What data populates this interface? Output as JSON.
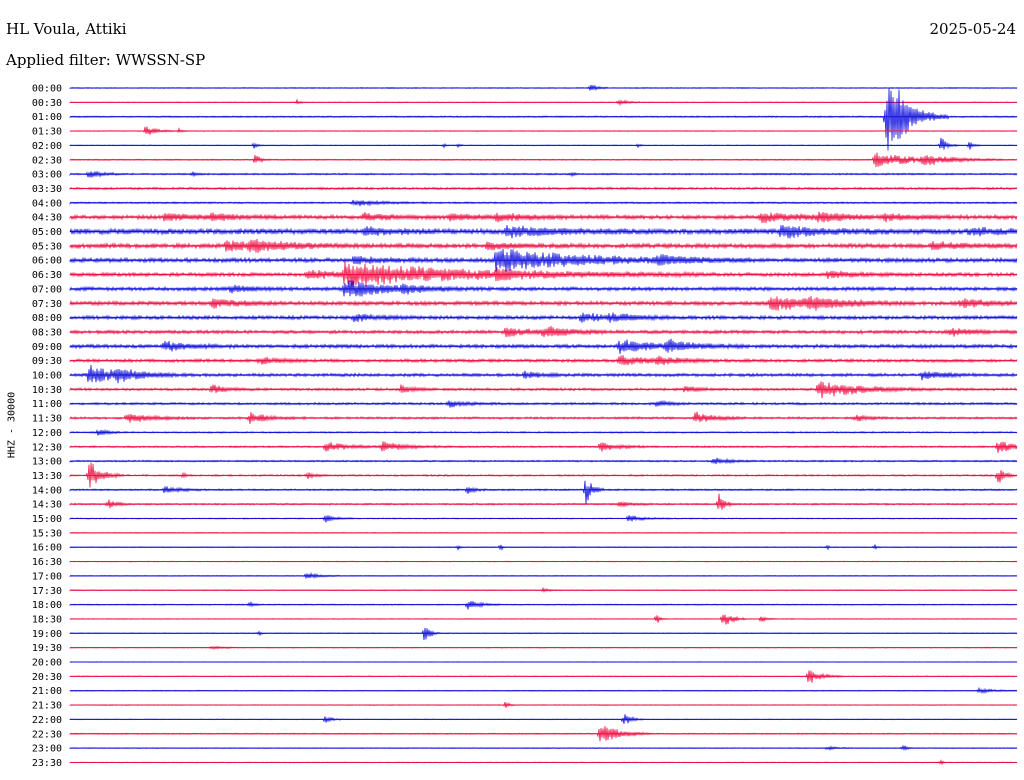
{
  "header": {
    "station": "HL Voula, Attiki",
    "date": "2025-05-24",
    "filter": "Applied filter: WWSSN-SP"
  },
  "chart_data": {
    "type": "line",
    "ylabel": "HHZ - 30000",
    "colors": {
      "even": "#1111dd",
      "odd": "#ee1144"
    },
    "row_labels": [
      "00:00",
      "00:30",
      "01:00",
      "01:30",
      "02:00",
      "02:30",
      "03:00",
      "03:30",
      "04:00",
      "04:30",
      "05:00",
      "05:30",
      "06:00",
      "06:30",
      "07:00",
      "07:30",
      "08:00",
      "08:30",
      "09:00",
      "09:30",
      "10:00",
      "10:30",
      "11:00",
      "11:30",
      "12:00",
      "12:30",
      "13:00",
      "13:30",
      "14:00",
      "14:30",
      "15:00",
      "15:30",
      "16:00",
      "16:30",
      "17:00",
      "17:30",
      "18:00",
      "18:30",
      "19:00",
      "19:30",
      "20:00",
      "20:30",
      "21:00",
      "21:30",
      "22:00",
      "22:30",
      "23:00",
      "23:30"
    ],
    "series": [
      {
        "row": 0,
        "noise": 0.4,
        "events": [
          [
            0.55,
            0.6,
            3.5
          ]
        ]
      },
      {
        "row": 1,
        "noise": 0.3,
        "events": [
          [
            0.24,
            0.3,
            2
          ],
          [
            0.58,
            0.8,
            3
          ]
        ]
      },
      {
        "row": 2,
        "noise": 0.5,
        "events": [
          [
            0.862,
            2.2,
            30
          ],
          [
            0.875,
            1.0,
            10
          ]
        ]
      },
      {
        "row": 3,
        "noise": 0.3,
        "events": [
          [
            0.08,
            1.0,
            5
          ],
          [
            0.115,
            0.4,
            2
          ]
        ]
      },
      {
        "row": 4,
        "noise": 0.3,
        "events": [
          [
            0.195,
            0.3,
            3
          ],
          [
            0.395,
            0.2,
            2
          ],
          [
            0.41,
            0.2,
            2
          ],
          [
            0.6,
            0.2,
            2
          ],
          [
            0.92,
            0.6,
            7
          ],
          [
            0.95,
            0.4,
            4
          ]
        ]
      },
      {
        "row": 5,
        "noise": 0.4,
        "events": [
          [
            0.196,
            0.5,
            5
          ],
          [
            0.85,
            4.5,
            6
          ],
          [
            0.9,
            2.5,
            4
          ]
        ]
      },
      {
        "row": 6,
        "noise": 0.6,
        "events": [
          [
            0.02,
            1.2,
            4
          ],
          [
            0.13,
            0.4,
            2
          ],
          [
            0.53,
            0.2,
            2
          ]
        ]
      },
      {
        "row": 7,
        "noise": 0.8,
        "events": []
      },
      {
        "row": 8,
        "noise": 0.6,
        "events": [
          [
            0.3,
            2.5,
            3
          ]
        ]
      },
      {
        "row": 9,
        "noise": 1.4,
        "events": [
          [
            0.1,
            3,
            3
          ],
          [
            0.15,
            2.5,
            3
          ],
          [
            0.31,
            3,
            3
          ],
          [
            0.4,
            2.5,
            3
          ],
          [
            0.45,
            4,
            3
          ],
          [
            0.73,
            4,
            4
          ],
          [
            0.79,
            2.8,
            4
          ],
          [
            0.86,
            3,
            3
          ]
        ]
      },
      {
        "row": 10,
        "noise": 2.0,
        "events": [
          [
            0.31,
            3,
            3
          ],
          [
            0.46,
            5.5,
            4
          ],
          [
            0.75,
            4,
            5
          ],
          [
            0.95,
            3,
            3
          ]
        ]
      },
      {
        "row": 11,
        "noise": 1.6,
        "events": [
          [
            0.165,
            5,
            4
          ],
          [
            0.19,
            3,
            4
          ],
          [
            0.44,
            2.5,
            3
          ],
          [
            0.91,
            3,
            3
          ]
        ]
      },
      {
        "row": 12,
        "noise": 1.5,
        "events": [
          [
            0.45,
            9,
            10
          ],
          [
            0.3,
            2.5,
            3
          ],
          [
            0.62,
            3,
            3
          ]
        ]
      },
      {
        "row": 13,
        "noise": 1.3,
        "events": [
          [
            0.29,
            13,
            10
          ],
          [
            0.25,
            3,
            4
          ],
          [
            0.45,
            2.5,
            3
          ],
          [
            0.8,
            3,
            3
          ]
        ]
      },
      {
        "row": 14,
        "noise": 1.3,
        "events": [
          [
            0.29,
            4,
            8
          ],
          [
            0.35,
            3,
            3
          ],
          [
            0.17,
            2.2,
            3
          ]
        ]
      },
      {
        "row": 15,
        "noise": 1.4,
        "events": [
          [
            0.15,
            2.5,
            4
          ],
          [
            0.74,
            5,
            6
          ],
          [
            0.78,
            3,
            4
          ],
          [
            0.94,
            3,
            4
          ]
        ]
      },
      {
        "row": 16,
        "noise": 1.3,
        "events": [
          [
            0.3,
            2.5,
            3
          ],
          [
            0.54,
            2.5,
            4
          ],
          [
            0.57,
            2.5,
            3
          ]
        ]
      },
      {
        "row": 17,
        "noise": 1.2,
        "events": [
          [
            0.46,
            3,
            4
          ],
          [
            0.5,
            3,
            4
          ],
          [
            0.93,
            2.5,
            3
          ]
        ]
      },
      {
        "row": 18,
        "noise": 1.3,
        "events": [
          [
            0.1,
            2.5,
            4
          ],
          [
            0.58,
            3,
            6
          ],
          [
            0.63,
            2.8,
            5
          ]
        ]
      },
      {
        "row": 19,
        "noise": 1.1,
        "events": [
          [
            0.2,
            2,
            3
          ],
          [
            0.58,
            3,
            4
          ],
          [
            0.62,
            2.4,
            3
          ]
        ]
      },
      {
        "row": 20,
        "noise": 1.1,
        "events": [
          [
            0.02,
            3,
            8
          ],
          [
            0.05,
            2.5,
            4
          ],
          [
            0.48,
            1.5,
            3
          ],
          [
            0.9,
            2,
            4
          ]
        ]
      },
      {
        "row": 21,
        "noise": 0.9,
        "events": [
          [
            0.15,
            1.5,
            4
          ],
          [
            0.35,
            1.2,
            4
          ],
          [
            0.65,
            1.2,
            3
          ],
          [
            0.79,
            4,
            8
          ]
        ]
      },
      {
        "row": 22,
        "noise": 0.8,
        "events": [
          [
            0.4,
            2,
            3
          ],
          [
            0.62,
            1.2,
            3
          ]
        ]
      },
      {
        "row": 23,
        "noise": 0.8,
        "events": [
          [
            0.06,
            2.5,
            4
          ],
          [
            0.19,
            2,
            5
          ],
          [
            0.66,
            1.8,
            5
          ],
          [
            0.83,
            1.2,
            3
          ]
        ]
      },
      {
        "row": 24,
        "noise": 0.5,
        "events": [
          [
            0.03,
            1,
            3
          ]
        ]
      },
      {
        "row": 25,
        "noise": 0.6,
        "events": [
          [
            0.27,
            2.5,
            4
          ],
          [
            0.33,
            2.5,
            4
          ],
          [
            0.56,
            2,
            4
          ],
          [
            0.98,
            2,
            5
          ]
        ]
      },
      {
        "row": 26,
        "noise": 0.6,
        "events": [
          [
            0.68,
            1.5,
            3
          ]
        ]
      },
      {
        "row": 27,
        "noise": 0.6,
        "events": [
          [
            0.02,
            1.2,
            14
          ],
          [
            0.25,
            0.8,
            3
          ],
          [
            0.12,
            0.4,
            2
          ],
          [
            0.98,
            0.6,
            8
          ]
        ]
      },
      {
        "row": 28,
        "noise": 0.6,
        "events": [
          [
            0.1,
            1.5,
            3
          ],
          [
            0.42,
            0.8,
            3
          ],
          [
            0.545,
            0.6,
            12
          ]
        ]
      },
      {
        "row": 29,
        "noise": 0.6,
        "events": [
          [
            0.04,
            0.8,
            4
          ],
          [
            0.58,
            1.2,
            3
          ],
          [
            0.685,
            0.6,
            9
          ]
        ]
      },
      {
        "row": 30,
        "noise": 0.4,
        "events": [
          [
            0.27,
            1,
            3
          ],
          [
            0.59,
            1.5,
            3
          ]
        ]
      },
      {
        "row": 31,
        "noise": 0.3,
        "events": []
      },
      {
        "row": 32,
        "noise": 0.3,
        "events": [
          [
            0.41,
            0.2,
            2
          ],
          [
            0.455,
            0.2,
            3
          ],
          [
            0.8,
            0.2,
            2
          ],
          [
            0.85,
            0.2,
            2
          ]
        ]
      },
      {
        "row": 33,
        "noise": 0.3,
        "events": []
      },
      {
        "row": 34,
        "noise": 0.3,
        "events": [
          [
            0.25,
            1.2,
            3
          ]
        ]
      },
      {
        "row": 35,
        "noise": 0.3,
        "events": [
          [
            0.5,
            0.5,
            2
          ]
        ]
      },
      {
        "row": 36,
        "noise": 0.4,
        "events": [
          [
            0.42,
            1.2,
            4
          ],
          [
            0.19,
            0.5,
            2
          ]
        ]
      },
      {
        "row": 37,
        "noise": 0.3,
        "events": [
          [
            0.62,
            0.3,
            6
          ],
          [
            0.69,
            0.8,
            8
          ],
          [
            0.73,
            0.5,
            3
          ]
        ]
      },
      {
        "row": 38,
        "noise": 0.3,
        "events": [
          [
            0.375,
            0.5,
            10
          ],
          [
            0.2,
            0.2,
            2
          ]
        ]
      },
      {
        "row": 39,
        "noise": 0.3,
        "events": [
          [
            0.15,
            1,
            2
          ]
        ]
      },
      {
        "row": 40,
        "noise": 0.2,
        "events": []
      },
      {
        "row": 41,
        "noise": 0.3,
        "events": [
          [
            0.78,
            1.2,
            7
          ]
        ]
      },
      {
        "row": 42,
        "noise": 0.3,
        "events": [
          [
            0.96,
            1.5,
            2
          ]
        ]
      },
      {
        "row": 43,
        "noise": 0.3,
        "events": [
          [
            0.46,
            0.3,
            4
          ]
        ]
      },
      {
        "row": 44,
        "noise": 0.3,
        "events": [
          [
            0.27,
            0.6,
            3
          ],
          [
            0.585,
            0.7,
            6
          ]
        ]
      },
      {
        "row": 45,
        "noise": 0.4,
        "events": [
          [
            0.56,
            1.8,
            9
          ]
        ]
      },
      {
        "row": 46,
        "noise": 0.3,
        "events": [
          [
            0.8,
            0.8,
            2
          ],
          [
            0.88,
            0.4,
            3
          ]
        ]
      },
      {
        "row": 47,
        "noise": 0.3,
        "events": [
          [
            0.92,
            0.2,
            2
          ]
        ]
      }
    ]
  }
}
